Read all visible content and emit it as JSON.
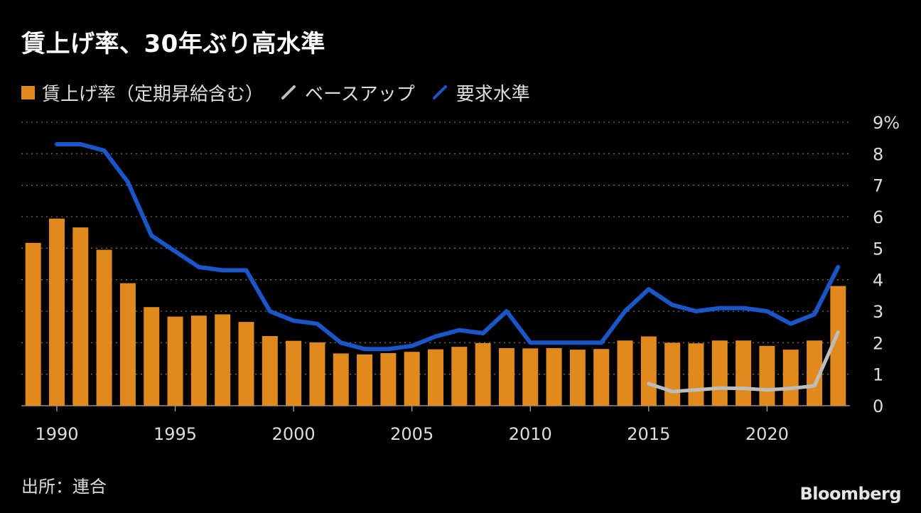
{
  "title": "賃上げ率、30年ぶり高水準",
  "legend": [
    {
      "label": "賃上げ率（定期昇給含む）",
      "color": "#e08a1e",
      "kind": "bar"
    },
    {
      "label": "ベースアップ",
      "color": "#bdbdbd",
      "kind": "line"
    },
    {
      "label": "要求水準",
      "color": "#1a56c8",
      "kind": "line"
    }
  ],
  "source": "出所：連合",
  "brand": "Bloomberg",
  "chart_data": {
    "type": "bar+line",
    "title": "賃上げ率、30年ぶり高水準",
    "x": [
      1989,
      1990,
      1991,
      1992,
      1993,
      1994,
      1995,
      1996,
      1997,
      1998,
      1999,
      2000,
      2001,
      2002,
      2003,
      2004,
      2005,
      2006,
      2007,
      2008,
      2009,
      2010,
      2011,
      2012,
      2013,
      2014,
      2015,
      2016,
      2017,
      2018,
      2019,
      2020,
      2021,
      2022,
      2023
    ],
    "x_ticks": [
      "1990",
      "1995",
      "2000",
      "2005",
      "2010",
      "2015",
      "2020"
    ],
    "x_tick_values": [
      1990,
      1995,
      2000,
      2005,
      2010,
      2015,
      2020
    ],
    "y_ticks": [
      "0",
      "1",
      "2",
      "3",
      "4",
      "5",
      "6",
      "7",
      "8",
      "9%"
    ],
    "y_tick_values": [
      0,
      1,
      2,
      3,
      4,
      5,
      6,
      7,
      8,
      9
    ],
    "ylim": [
      0,
      9
    ],
    "xlim": [
      1988.5,
      2023.5
    ],
    "y_axis_position": "right",
    "grid": "horizontal dotted",
    "series": [
      {
        "name": "賃上げ率（定期昇給含む）",
        "type": "bar",
        "color": "#e08a1e",
        "values": [
          5.17,
          5.94,
          5.66,
          4.95,
          3.89,
          3.13,
          2.83,
          2.86,
          2.9,
          2.66,
          2.21,
          2.06,
          2.01,
          1.66,
          1.63,
          1.67,
          1.71,
          1.79,
          1.87,
          1.99,
          1.83,
          1.82,
          1.83,
          1.78,
          1.8,
          2.07,
          2.2,
          2.0,
          1.98,
          2.07,
          2.07,
          1.9,
          1.78,
          2.07,
          3.8
        ]
      },
      {
        "name": "ベースアップ",
        "type": "line",
        "color": "#bdbdbd",
        "x": [
          2015,
          2016,
          2017,
          2018,
          2019,
          2020,
          2021,
          2022,
          2023
        ],
        "values": [
          0.7,
          0.45,
          0.5,
          0.56,
          0.55,
          0.5,
          0.55,
          0.63,
          2.33
        ]
      },
      {
        "name": "要求水準",
        "type": "line",
        "color": "#1a56c8",
        "x": [
          1990,
          1991,
          1992,
          1993,
          1994,
          1995,
          1996,
          1997,
          1998,
          1999,
          2000,
          2001,
          2002,
          2003,
          2004,
          2005,
          2006,
          2007,
          2008,
          2009,
          2010,
          2011,
          2012,
          2013,
          2014,
          2015,
          2016,
          2017,
          2018,
          2019,
          2020,
          2021,
          2022,
          2023
        ],
        "values": [
          8.3,
          8.3,
          8.1,
          7.1,
          5.4,
          4.9,
          4.4,
          4.3,
          4.3,
          3.0,
          2.7,
          2.6,
          2.0,
          1.8,
          1.8,
          1.9,
          2.2,
          2.4,
          2.3,
          3.0,
          2.0,
          2.0,
          2.0,
          2.0,
          3.0,
          3.7,
          3.2,
          3.0,
          3.1,
          3.1,
          3.0,
          2.6,
          2.9,
          4.4
        ]
      }
    ]
  }
}
